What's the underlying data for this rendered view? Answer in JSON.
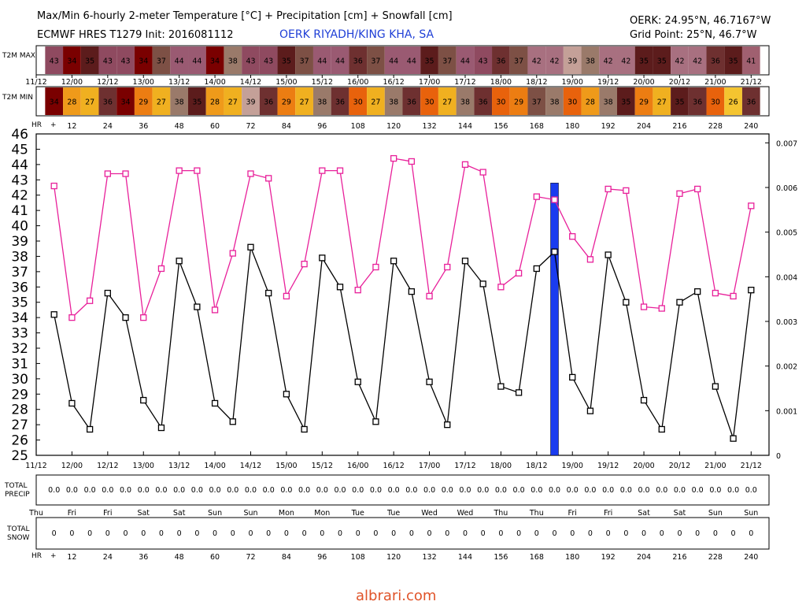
{
  "header": {
    "title": "Max/Min 6-hourly 2-meter Temperature [°C] + Precipitation [cm] + Snowfall [cm]",
    "model": "ECMWF HRES T1279 Init: 2016081112",
    "station_name": "OERK RIYADH/KING KHA, SA",
    "station_coords": "OERK: 24.95°N, 46.7167°W",
    "grid_point": "Grid Point: 25°N, 46.7°W"
  },
  "labels": {
    "t2m_max": "T2M MAX",
    "t2m_min": "T2M MIN",
    "hr": "HR",
    "hr_plus": "+",
    "total_precip_1": "TOTAL",
    "total_precip_2": "PRECIP",
    "total_snow_1": "TOTAL",
    "total_snow_2": "SNOW"
  },
  "footer": {
    "watermark": "albrari.com"
  },
  "colors": {
    "max_line": "#e8209a",
    "min_line": "#000000",
    "precip_bar": "#1a3cf0",
    "station_text": "#1f3fd6"
  },
  "chart_data": {
    "type": "line",
    "date_labels": [
      "11/12",
      "12/00",
      "12/12",
      "13/00",
      "13/12",
      "14/00",
      "14/12",
      "15/00",
      "15/12",
      "16/00",
      "16/12",
      "17/00",
      "17/12",
      "18/00",
      "18/12",
      "19/00",
      "19/12",
      "20/00",
      "20/12",
      "21/00",
      "21/12"
    ],
    "hour_labels": [
      "12",
      "24",
      "36",
      "48",
      "60",
      "72",
      "84",
      "96",
      "108",
      "120",
      "132",
      "144",
      "156",
      "168",
      "180",
      "192",
      "204",
      "216",
      "228",
      "240"
    ],
    "day_labels": [
      "Thu",
      "Fri",
      "Fri",
      "Sat",
      "Sat",
      "Sun",
      "Sun",
      "Mon",
      "Mon",
      "Tue",
      "Tue",
      "Wed",
      "Wed",
      "Thu",
      "Thu",
      "Fri",
      "Fri",
      "Sat",
      "Sat",
      "Sun",
      "Sun"
    ],
    "x_hours": [
      6,
      12,
      18,
      24,
      30,
      36,
      42,
      48,
      54,
      60,
      66,
      72,
      78,
      84,
      90,
      96,
      102,
      108,
      114,
      120,
      126,
      132,
      138,
      144,
      150,
      156,
      162,
      168,
      174,
      180,
      186,
      192,
      198,
      204,
      210,
      216,
      222,
      228,
      234,
      240
    ],
    "series": [
      {
        "name": "T2M MAX",
        "color": "#e8209a",
        "values": [
          42.6,
          34.0,
          35.1,
          43.4,
          43.4,
          34.0,
          37.2,
          43.6,
          43.6,
          34.5,
          38.2,
          43.4,
          43.1,
          35.4,
          37.5,
          43.6,
          43.6,
          35.8,
          37.3,
          44.4,
          44.2,
          35.4,
          37.3,
          44.0,
          43.5,
          36.0,
          36.9,
          41.9,
          41.7,
          39.3,
          37.8,
          42.4,
          42.3,
          34.7,
          34.6,
          42.1,
          42.4,
          35.6,
          35.4,
          41.3
        ]
      },
      {
        "name": "T2M MIN",
        "color": "#000000",
        "values": [
          34.2,
          28.4,
          26.7,
          35.6,
          34.0,
          28.6,
          26.8,
          37.7,
          34.7,
          28.4,
          27.2,
          38.6,
          35.6,
          29.0,
          26.7,
          37.9,
          36.0,
          29.8,
          27.2,
          37.7,
          35.7,
          29.8,
          27.0,
          37.7,
          36.2,
          29.5,
          29.1,
          37.2,
          38.3,
          30.1,
          27.9,
          38.1,
          35.0,
          28.6,
          26.7,
          35.0,
          35.7,
          29.5,
          26.1,
          35.8
        ]
      }
    ],
    "precip": {
      "x_hours": [
        174
      ],
      "values": [
        0.0061
      ]
    },
    "max_strip": [
      43,
      34,
      35,
      43,
      43,
      34,
      37,
      44,
      44,
      34,
      38,
      43,
      43,
      35,
      37,
      44,
      44,
      36,
      37,
      44,
      44,
      35,
      37,
      44,
      43,
      36,
      37,
      42,
      42,
      39,
      38,
      42,
      42,
      35,
      35,
      42,
      42,
      36,
      35,
      41
    ],
    "min_strip": [
      34,
      28,
      27,
      36,
      34,
      29,
      27,
      38,
      35,
      28,
      27,
      39,
      36,
      29,
      27,
      38,
      36,
      30,
      27,
      38,
      36,
      30,
      27,
      38,
      36,
      30,
      29,
      37,
      38,
      30,
      28,
      38,
      35,
      29,
      27,
      35,
      36,
      30,
      26,
      36
    ],
    "total_precip": [
      "0.0",
      "0.0",
      "0.0",
      "0.0",
      "0.0",
      "0.0",
      "0.0",
      "0.0",
      "0.0",
      "0.0",
      "0.0",
      "0.0",
      "0.0",
      "0.0",
      "0.0",
      "0.0",
      "0.0",
      "0.0",
      "0.0",
      "0.0",
      "0.0",
      "0.0",
      "0.0",
      "0.0",
      "0.0",
      "0.0",
      "0.0",
      "0.0",
      "0.0",
      "0.0",
      "0.0",
      "0.0",
      "0.0",
      "0.0",
      "0.0",
      "0.0",
      "0.0",
      "0.0",
      "0.0",
      "0.0"
    ],
    "total_snow": [
      "0",
      "0",
      "0",
      "0",
      "0",
      "0",
      "0",
      "0",
      "0",
      "0",
      "0",
      "0",
      "0",
      "0",
      "0",
      "0",
      "0",
      "0",
      "0",
      "0",
      "0",
      "0",
      "0",
      "0",
      "0",
      "0",
      "0",
      "0",
      "0",
      "0",
      "0",
      "0",
      "0",
      "0",
      "0",
      "0",
      "0",
      "0",
      "0",
      "0"
    ],
    "ylim_temp": [
      25,
      46
    ],
    "y_ticks_temp": [
      25,
      26,
      27,
      28,
      29,
      30,
      31,
      32,
      33,
      34,
      35,
      36,
      37,
      38,
      39,
      40,
      41,
      42,
      43,
      44,
      45,
      46
    ],
    "ylim_precip": [
      0,
      0.0072
    ],
    "y_ticks_precip": [
      "0",
      "0.001",
      "0.002",
      "0.003",
      "0.004",
      "0.005",
      "0.006",
      "0.007"
    ],
    "grid": false
  }
}
